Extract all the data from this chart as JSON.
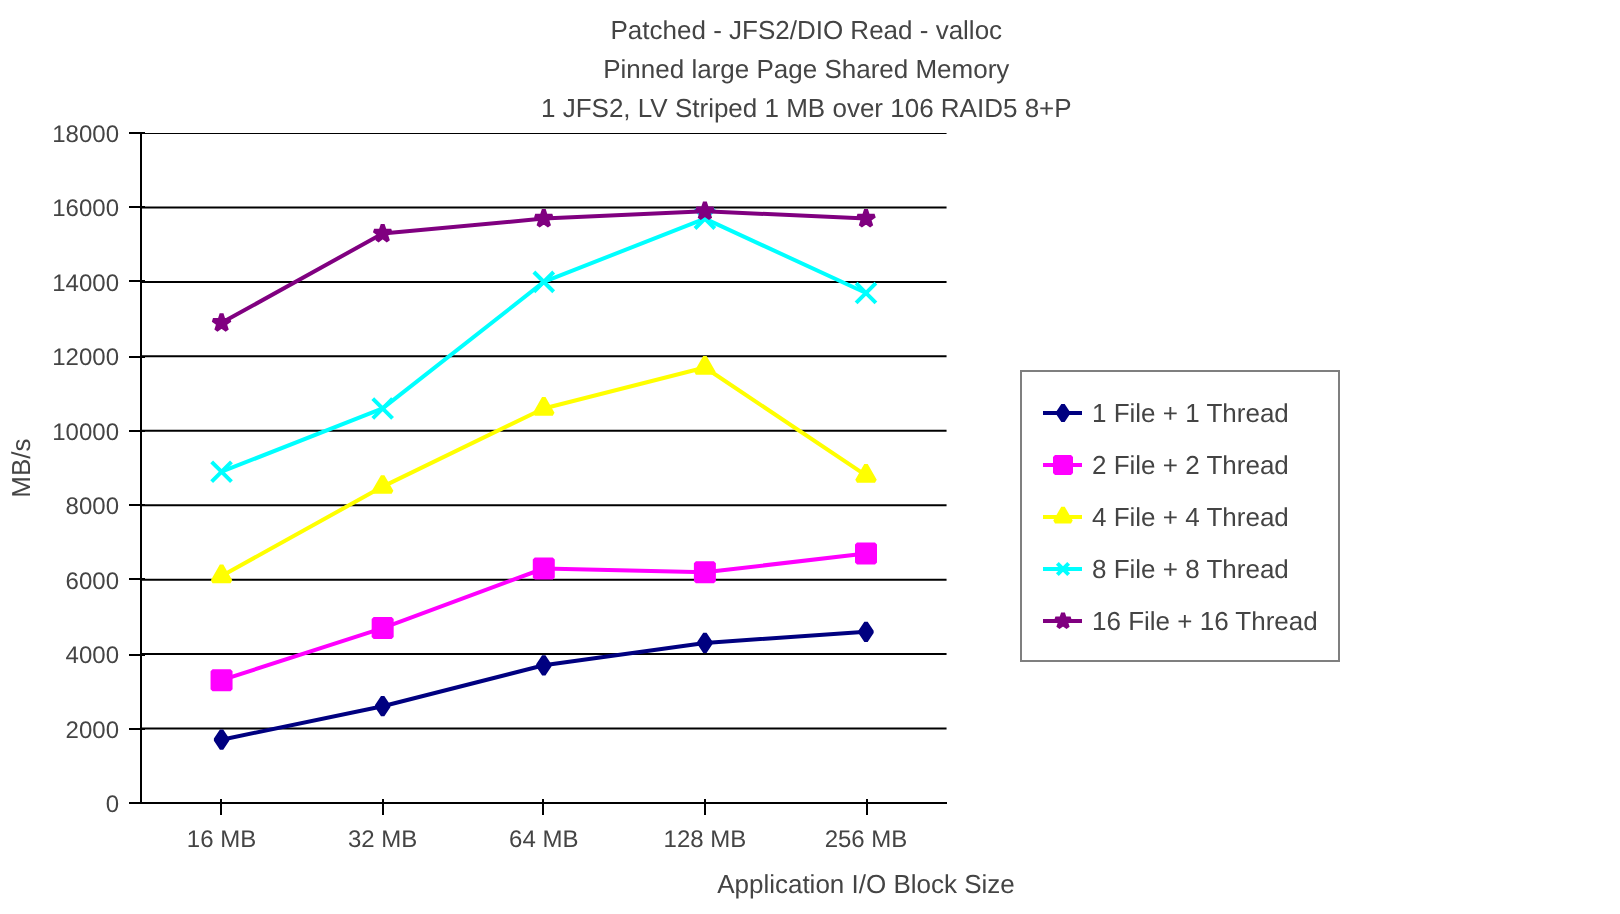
{
  "chart_data": {
    "type": "line",
    "title": "Patched - JFS2/DIO Read - valloc\nPinned large Page Shared Memory\n1 JFS2, LV Striped 1 MB over 106 RAID5 8+P",
    "xlabel": "Application I/O Block Size",
    "ylabel": "MB/s",
    "categories": [
      "16 MB",
      "32 MB",
      "64 MB",
      "128 MB",
      "256 MB"
    ],
    "series": [
      {
        "name": "1 File + 1 Thread",
        "color": "#000080",
        "marker": "diamond",
        "values": [
          1700,
          2600,
          3700,
          4300,
          4600
        ]
      },
      {
        "name": "2 File + 2 Thread",
        "color": "#ff00ff",
        "marker": "square",
        "values": [
          3300,
          4700,
          6300,
          6200,
          6700
        ]
      },
      {
        "name": "4 File + 4 Thread",
        "color": "#ffff00",
        "marker": "triangle",
        "values": [
          6100,
          8500,
          10600,
          11700,
          8800
        ]
      },
      {
        "name": "8 File + 8 Thread",
        "color": "#00ffff",
        "marker": "x",
        "values": [
          8900,
          10600,
          14000,
          15700,
          13700
        ]
      },
      {
        "name": "16 File + 16 Thread",
        "color": "#800080",
        "marker": "star",
        "values": [
          12900,
          15300,
          15700,
          15900,
          15700
        ]
      }
    ],
    "ylim": [
      0,
      18000
    ],
    "yticks": [
      0,
      2000,
      4000,
      6000,
      8000,
      10000,
      12000,
      14000,
      16000,
      18000
    ],
    "grid": "y",
    "legend": "right",
    "line_style": "solid"
  }
}
